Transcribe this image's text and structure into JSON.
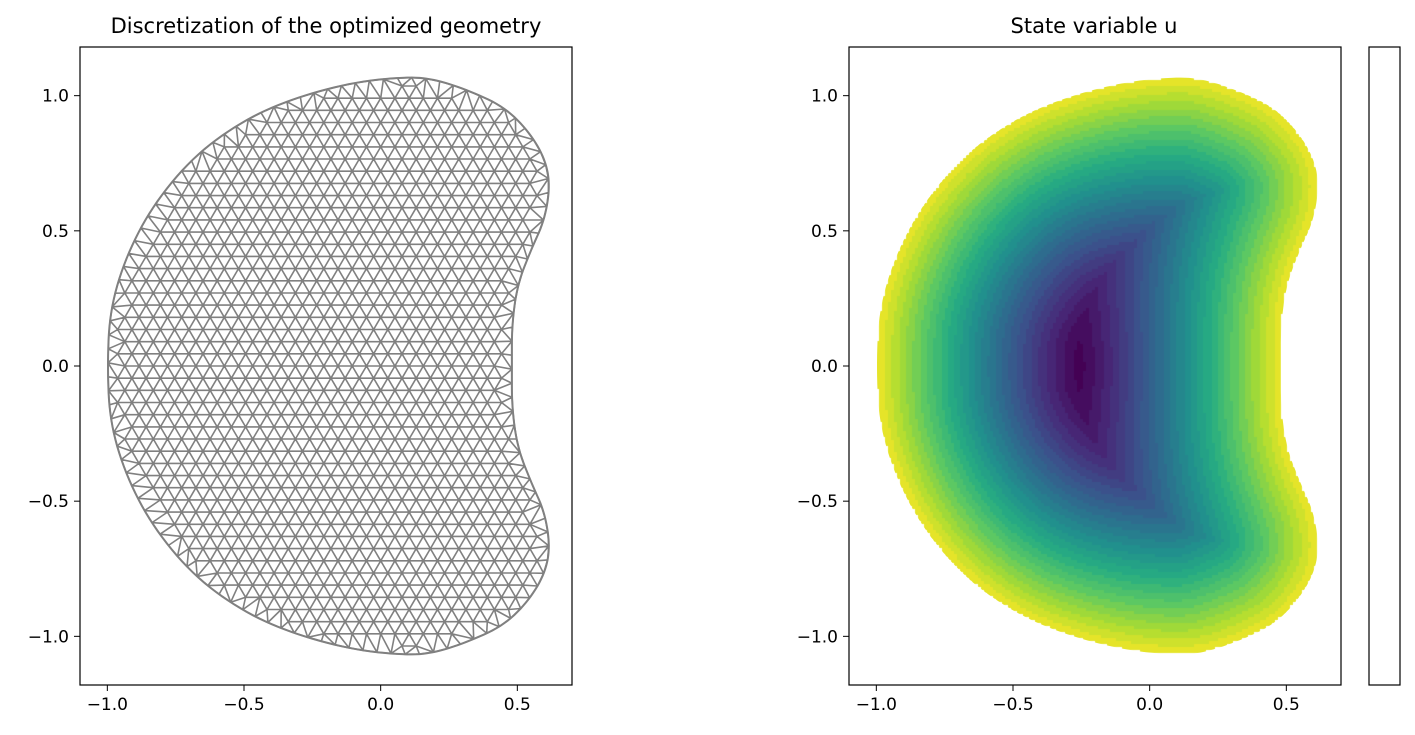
{
  "figure": {
    "panel_left_title": "Discretization of the optimized geometry",
    "panel_right_title": "State variable u"
  },
  "chart_data": [
    {
      "type": "mesh",
      "title": "Discretization of the optimized geometry",
      "xlabel": "",
      "ylabel": "",
      "xlim": [
        -1.1,
        0.7
      ],
      "ylim": [
        -1.18,
        1.18
      ],
      "xticks": [
        -1.0,
        -0.5,
        0.0,
        0.5
      ],
      "xtick_labels": [
        "−1.0",
        "−0.5",
        "0.0",
        "0.5"
      ],
      "yticks": [
        -1.0,
        -0.5,
        0.0,
        0.5,
        1.0
      ],
      "ytick_labels": [
        "−1.0",
        "−0.5",
        "0.0",
        "0.5",
        "1.0"
      ],
      "mesh_color": "#808080",
      "boundary": [
        [
          -1.0,
          0.0
        ],
        [
          -0.99,
          -0.21
        ],
        [
          -0.93,
          -0.41
        ],
        [
          -0.83,
          -0.6
        ],
        [
          -0.68,
          -0.78
        ],
        [
          -0.5,
          -0.91
        ],
        [
          -0.32,
          -0.99
        ],
        [
          -0.1,
          -1.05
        ],
        [
          0.1,
          -1.07
        ],
        [
          0.2,
          -1.06
        ],
        [
          0.32,
          -1.02
        ],
        [
          0.45,
          -0.96
        ],
        [
          0.54,
          -0.87
        ],
        [
          0.6,
          -0.77
        ],
        [
          0.62,
          -0.67
        ],
        [
          0.6,
          -0.54
        ],
        [
          0.55,
          -0.43
        ],
        [
          0.5,
          -0.3
        ],
        [
          0.48,
          -0.15
        ],
        [
          0.48,
          0.0
        ],
        [
          0.48,
          0.15
        ],
        [
          0.5,
          0.3
        ],
        [
          0.55,
          0.43
        ],
        [
          0.6,
          0.54
        ],
        [
          0.62,
          0.67
        ],
        [
          0.6,
          0.77
        ],
        [
          0.54,
          0.87
        ],
        [
          0.45,
          0.96
        ],
        [
          0.32,
          1.02
        ],
        [
          0.2,
          1.06
        ],
        [
          0.1,
          1.07
        ],
        [
          -0.1,
          1.05
        ],
        [
          -0.32,
          0.99
        ],
        [
          -0.5,
          0.91
        ],
        [
          -0.68,
          0.78
        ],
        [
          -0.83,
          0.6
        ],
        [
          -0.93,
          0.41
        ],
        [
          -0.99,
          0.21
        ]
      ]
    },
    {
      "type": "heatmap",
      "title": "State variable u",
      "xlabel": "",
      "ylabel": "",
      "xlim": [
        -1.1,
        0.7
      ],
      "ylim": [
        -1.18,
        1.18
      ],
      "xticks": [
        -1.0,
        -0.5,
        0.0,
        0.5
      ],
      "xtick_labels": [
        "−1.0",
        "−0.5",
        "0.0",
        "0.5"
      ],
      "yticks": [
        -1.0,
        -0.5,
        0.0,
        0.5,
        1.0
      ],
      "ytick_labels": [
        "−1.0",
        "−0.5",
        "0.0",
        "0.5",
        "1.0"
      ],
      "colormap": "viridis",
      "colormap_stops": [
        "#440154",
        "#472c7a",
        "#3b518b",
        "#2c718e",
        "#21908d",
        "#27ad81",
        "#5cc863",
        "#aadc32",
        "#fde725"
      ],
      "minimum_location": [
        -0.25,
        0.0
      ],
      "colorbar": {
        "present": true,
        "tick_labels": []
      }
    }
  ]
}
